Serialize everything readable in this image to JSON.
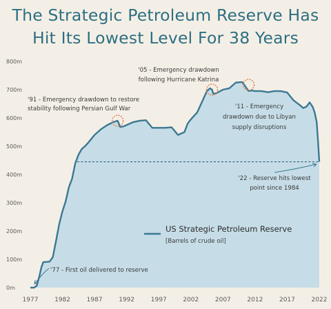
{
  "header": {
    "title_line1": "The Strategic Petroleum Reserve Has",
    "title_line2": "Hit Its Lowest Level For 38 Years"
  },
  "colors": {
    "background": "#f4efe6",
    "title": "#2d6f83",
    "area_fill": "#c6dde7",
    "line": "#3b7892",
    "annotation_circle": "#e07a50",
    "reference_line": "#2f5f78"
  },
  "chart_data": {
    "type": "area",
    "title": "The Strategic Petroleum Reserve Has Hit Its Lowest Level For 38 Years",
    "xlabel": "",
    "ylabel": "",
    "xlim": [
      1977,
      2022
    ],
    "ylim": [
      0,
      800
    ],
    "grid": false,
    "x_ticks": [
      1977,
      1982,
      1987,
      1992,
      1997,
      2002,
      2007,
      2012,
      2017,
      2022
    ],
    "y_ticks": [
      "0m",
      "100m",
      "200m",
      "300m",
      "400m",
      "500m",
      "600m",
      "700m",
      "800m"
    ],
    "series": [
      {
        "name": "US Strategic Petroleum Reserve",
        "unit": "[Barrels of crude oil]",
        "x": [
          1977.0,
          1977.6,
          1978.0,
          1978.4,
          1978.7,
          1979.0,
          1979.5,
          1980.0,
          1980.5,
          1981.0,
          1981.5,
          1982.0,
          1982.5,
          1983.0,
          1983.5,
          1984.0,
          1984.5,
          1985.0,
          1985.5,
          1986.0,
          1987.0,
          1988.0,
          1989.0,
          1990.0,
          1990.6,
          1991.0,
          1991.5,
          1992.0,
          1993.0,
          1994.0,
          1995.0,
          1996.0,
          1997.0,
          1998.0,
          1999.0,
          2000.0,
          2001.0,
          2001.5,
          2002.0,
          2003.0,
          2004.0,
          2004.5,
          2005.0,
          2005.3,
          2005.5,
          2006.0,
          2007.0,
          2008.0,
          2009.0,
          2010.0,
          2011.0,
          2011.5,
          2012.0,
          2013.0,
          2014.0,
          2015.0,
          2016.0,
          2017.0,
          2018.0,
          2019.0,
          2019.5,
          2020.0,
          2020.5,
          2021.0,
          2021.3,
          2021.6,
          2021.8,
          2022.0
        ],
        "y": [
          0,
          0,
          7,
          40,
          70,
          90,
          91,
          92,
          108,
          165,
          225,
          270,
          305,
          355,
          385,
          440,
          470,
          490,
          500,
          512,
          540,
          560,
          575,
          586,
          590,
          568,
          570,
          575,
          585,
          590,
          592,
          565,
          565,
          565,
          567,
          540,
          550,
          580,
          595,
          620,
          670,
          695,
          705,
          700,
          685,
          688,
          700,
          705,
          725,
          727,
          695,
          697,
          695,
          695,
          691,
          695,
          695,
          690,
          662,
          645,
          635,
          640,
          655,
          638,
          618,
          585,
          520,
          445
        ]
      }
    ],
    "reference_line": {
      "y": 445,
      "style": "dashed"
    },
    "annotations": [
      {
        "text_lines": [
          "'77 - First oil delivered to reserve"
        ],
        "x": 1977.5,
        "y": 2
      },
      {
        "text_lines": [
          "'91 - Emergency drawdown to restore",
          "stability following Persian Gulf War"
        ],
        "x": 1990.6,
        "y": 590,
        "marker": "circle"
      },
      {
        "text_lines": [
          "'05 - Emergency drawdown",
          "following Hurricane Katrina"
        ],
        "x": 2005.3,
        "y": 700,
        "marker": "circle"
      },
      {
        "text_lines": [
          "'11 - Emergency",
          "drawdown due to Libyan",
          "supply disruptions"
        ],
        "x": 2011.0,
        "y": 717,
        "marker": "circle"
      },
      {
        "text_lines": [
          "'22 - Reserve hits lowest",
          "point since 1984"
        ],
        "x": 2022.0,
        "y": 445
      }
    ],
    "legend": {
      "position": "center",
      "label": "US Strategic Petroleum Reserve",
      "sublabel": "[Barrels of crude oil]"
    }
  }
}
